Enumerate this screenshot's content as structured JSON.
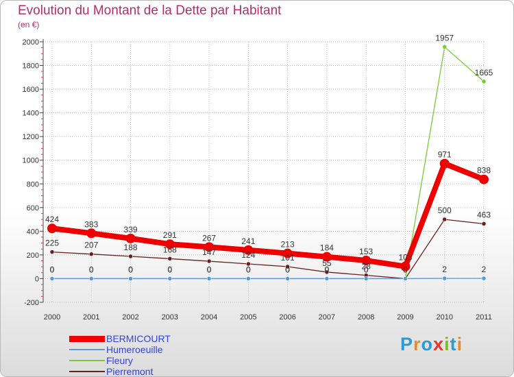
{
  "chart_data": {
    "type": "line",
    "title": "Evolution du Montant de la Dette par Habitant",
    "subtitle": "(en €)",
    "xlabel": "",
    "ylabel": "",
    "categories": [
      "2000",
      "2001",
      "2002",
      "2003",
      "2004",
      "2005",
      "2006",
      "2007",
      "2008",
      "2009",
      "2010",
      "2011"
    ],
    "ylim": [
      -200,
      2000
    ],
    "yticks": [
      -200,
      0,
      200,
      400,
      600,
      800,
      1000,
      1200,
      1400,
      1600,
      1800,
      2000
    ],
    "ytick_labels": [
      "-200",
      "0",
      "200",
      "400",
      "600",
      "800",
      "1000",
      "1200",
      "1400",
      "1600",
      "1800",
      "2000"
    ],
    "series": [
      {
        "name": "BERMICOURT",
        "color": "#ee0000",
        "values": [
          424,
          383,
          339,
          291,
          267,
          241,
          213,
          184,
          153,
          103,
          971,
          838
        ],
        "labels": [
          "424",
          "383",
          "339",
          "291",
          "267",
          "241",
          "213",
          "184",
          "153",
          "103",
          "971",
          "838"
        ]
      },
      {
        "name": "Humeroeuille",
        "color": "#5b9bd5",
        "values": [
          0,
          0,
          0,
          0,
          0,
          0,
          0,
          0,
          0,
          0,
          2,
          2
        ],
        "labels": [
          "0",
          "0",
          "0",
          "0",
          "0",
          "0",
          "0",
          "0",
          "0",
          "0",
          "2",
          "2"
        ]
      },
      {
        "name": "Fleury",
        "color": "#77cc33",
        "values": [
          0,
          0,
          0,
          0,
          0,
          0,
          0,
          0,
          0,
          0,
          1957,
          1665
        ],
        "labels": [
          "0",
          "0",
          "0",
          "0",
          "0",
          "0",
          "0",
          "0",
          "0",
          "0",
          "1957",
          "1665"
        ]
      },
      {
        "name": "Pierremont",
        "color": "#6b1f1f",
        "values": [
          225,
          207,
          188,
          168,
          147,
          124,
          101,
          55,
          28,
          0,
          500,
          463
        ],
        "labels": [
          "225",
          "207",
          "188",
          "168",
          "147",
          "124",
          "101",
          "55",
          "28",
          "0",
          "500",
          "463"
        ]
      }
    ]
  },
  "logo": {
    "letters": [
      "P",
      "r",
      "o",
      "x",
      "i",
      "t",
      "i"
    ],
    "colors": [
      "#2a9bd6",
      "#f08a1e",
      "#2a9bd6",
      "#e8352c",
      "#7dbb2e",
      "#2a9bd6",
      "#f08a1e"
    ]
  }
}
